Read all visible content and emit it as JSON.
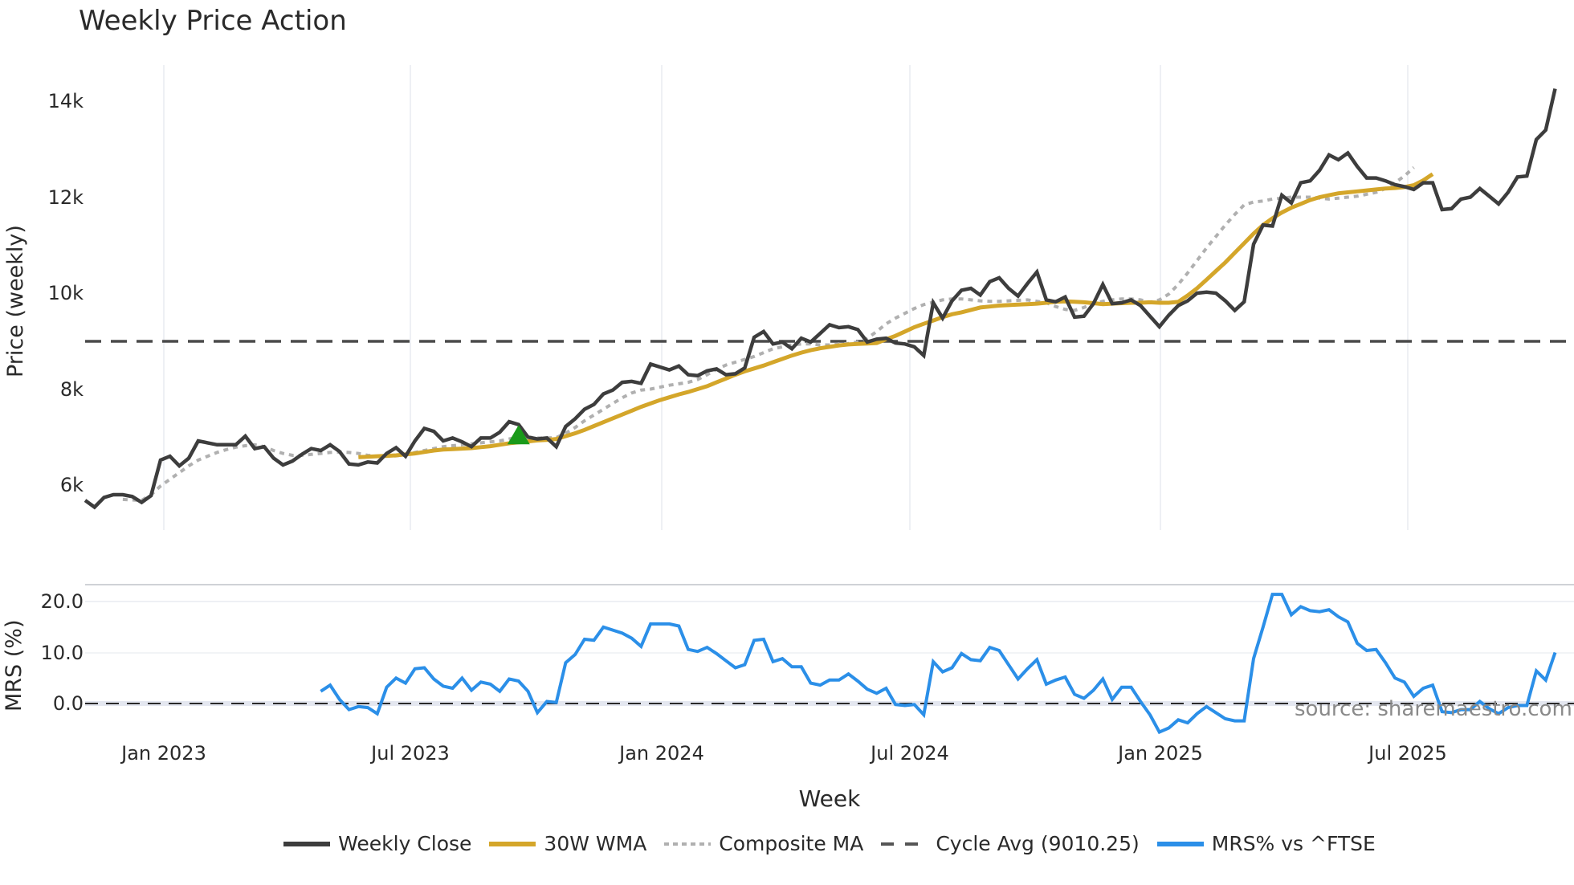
{
  "title": "Weekly Price Action",
  "source": "source: sharemaestro.com",
  "axes": {
    "main_ylabel": "Price (weekly)",
    "mrs_ylabel": "MRS (%)",
    "xlabel": "Week",
    "main_yticks": [
      "14k",
      "12k",
      "10k",
      "8k",
      "6k"
    ],
    "mrs_yticks": [
      "20.0",
      "10.0",
      "0.0"
    ],
    "xticks": [
      "Jan 2023",
      "Jul 2023",
      "Jan 2024",
      "Jul 2024",
      "Jan 2025",
      "Jul 2025"
    ]
  },
  "legend": [
    {
      "label": "Weekly Close",
      "color": "#3d3d3d",
      "style": "solid"
    },
    {
      "label": "30W WMA",
      "color": "#d4a62a",
      "style": "solid"
    },
    {
      "label": "Composite MA",
      "color": "#b0b0b0",
      "style": "dotted"
    },
    {
      "label": "Cycle Avg (9010.25)",
      "color": "#555555",
      "style": "dashed"
    },
    {
      "label": "MRS% vs ^FTSE",
      "color": "#2b8fe8",
      "style": "solid"
    }
  ],
  "colors": {
    "close": "#3d3d3d",
    "wma": "#d4a62a",
    "composite": "#b0b0b0",
    "cycle": "#4a4a4a",
    "mrs": "#2b8fe8",
    "marker": "#1a9a1a",
    "grid": "#e8ebf0"
  },
  "chart_data": [
    {
      "type": "line",
      "title": "Weekly Price Action",
      "xlabel": "Week",
      "ylabel": "Price (weekly)",
      "ylim": [
        5200,
        14800
      ],
      "x_tick_labels": [
        "Jan 2023",
        "Jul 2023",
        "Jan 2024",
        "Jul 2024",
        "Jan 2025",
        "Jul 2025"
      ],
      "series": [
        {
          "name": "Weekly Close",
          "start_week_index": 0,
          "values": [
            5680,
            5540,
            5740,
            5800,
            5800,
            5760,
            5640,
            5780,
            6520,
            6600,
            6400,
            6560,
            6920,
            6880,
            6840,
            6840,
            6840,
            7020,
            6760,
            6800,
            6560,
            6420,
            6500,
            6640,
            6760,
            6720,
            6840,
            6700,
            6440,
            6420,
            6480,
            6460,
            6660,
            6780,
            6600,
            6920,
            7180,
            7120,
            6920,
            6980,
            6900,
            6800,
            6980,
            6980,
            7100,
            7320,
            7260,
            7000,
            6960,
            6980,
            6800,
            7220,
            7380,
            7580,
            7680,
            7900,
            7980,
            8140,
            8160,
            8120,
            8520,
            8460,
            8400,
            8480,
            8300,
            8280,
            8380,
            8420,
            8300,
            8320,
            8440,
            9080,
            9200,
            8940,
            8980,
            8840,
            9060,
            8980,
            9160,
            9340,
            9280,
            9300,
            9240,
            8980,
            9040,
            9060,
            8960,
            8940,
            8880,
            8700,
            9800,
            9480,
            9840,
            10060,
            10100,
            9960,
            10240,
            10320,
            10100,
            9940,
            10200,
            10440,
            9860,
            9820,
            9920,
            9500,
            9520,
            9780,
            10180,
            9780,
            9800,
            9860,
            9740,
            9520,
            9300,
            9540,
            9740,
            9840,
            10000,
            10020,
            10000,
            9840,
            9640,
            9820,
            11020,
            11420,
            11400,
            12040,
            11880,
            12300,
            12340,
            12560,
            12880,
            12780,
            12920,
            12640,
            12400,
            12400,
            12340,
            12260,
            12220,
            12160,
            12300,
            12300,
            11740,
            11760,
            11960,
            12000,
            12180,
            12020,
            11860,
            12100,
            12420,
            12440,
            13200,
            13400,
            14260
          ]
        },
        {
          "name": "30W WMA",
          "start_week_index": 29,
          "values": [
            6580,
            6590,
            6600,
            6610,
            6620,
            6640,
            6660,
            6690,
            6720,
            6740,
            6750,
            6760,
            6770,
            6790,
            6810,
            6840,
            6870,
            6890,
            6910,
            6930,
            6940,
            6960,
            7020,
            7080,
            7150,
            7230,
            7310,
            7390,
            7470,
            7550,
            7630,
            7700,
            7770,
            7830,
            7890,
            7940,
            8000,
            8060,
            8140,
            8220,
            8300,
            8370,
            8430,
            8490,
            8560,
            8630,
            8700,
            8760,
            8810,
            8850,
            8880,
            8910,
            8930,
            8940,
            8950,
            8960,
            9040,
            9110,
            9200,
            9290,
            9360,
            9430,
            9500,
            9560,
            9600,
            9650,
            9700,
            9720,
            9740,
            9750,
            9760,
            9770,
            9780,
            9800,
            9820,
            9830,
            9820,
            9810,
            9790,
            9770,
            9780,
            9790,
            9800,
            9800,
            9810,
            9800,
            9800,
            9820,
            9950,
            10100,
            10280,
            10460,
            10640,
            10840,
            11040,
            11240,
            11420,
            11560,
            11680,
            11780,
            11860,
            11940,
            12000,
            12040,
            12080,
            12100,
            12120,
            12140,
            12160,
            12180,
            12190,
            12210,
            12250,
            12350,
            12480
          ]
        },
        {
          "name": "Composite MA",
          "start_week_index": 4,
          "values": [
            5700,
            5690,
            5680,
            5800,
            5980,
            6120,
            6260,
            6400,
            6520,
            6600,
            6680,
            6740,
            6790,
            6820,
            6840,
            6800,
            6720,
            6660,
            6620,
            6620,
            6640,
            6660,
            6680,
            6690,
            6680,
            6660,
            6620,
            6600,
            6600,
            6610,
            6640,
            6680,
            6720,
            6760,
            6800,
            6820,
            6840,
            6860,
            6880,
            6900,
            6920,
            6960,
            7000,
            7000,
            6980,
            6980,
            6990,
            7080,
            7200,
            7340,
            7460,
            7580,
            7700,
            7820,
            7920,
            7980,
            8000,
            8040,
            8080,
            8110,
            8140,
            8200,
            8300,
            8410,
            8500,
            8560,
            8620,
            8680,
            8760,
            8840,
            8880,
            8920,
            8940,
            8940,
            8920,
            8920,
            8940,
            8950,
            8980,
            9060,
            9200,
            9360,
            9480,
            9580,
            9680,
            9760,
            9810,
            9860,
            9880,
            9880,
            9860,
            9840,
            9830,
            9830,
            9840,
            9850,
            9860,
            9830,
            9800,
            9720,
            9660,
            9640,
            9700,
            9780,
            9830,
            9860,
            9880,
            9880,
            9860,
            9810,
            9860,
            9980,
            10180,
            10420,
            10680,
            10940,
            11180,
            11420,
            11640,
            11840,
            11900,
            11920,
            11960,
            11980,
            12000,
            12000,
            12000,
            11980,
            11960,
            11980,
            12000,
            12020,
            12060,
            12100,
            12180,
            12300,
            12440,
            12620
          ]
        },
        {
          "name": "Cycle Avg (9010.25)",
          "style": "dashed",
          "constant": 9010.25
        }
      ],
      "markers": [
        {
          "type": "triangle-up",
          "color": "#1a9a1a",
          "week_index": 46,
          "value": 7050
        }
      ]
    },
    {
      "type": "line",
      "ylabel": "MRS (%)",
      "ylim": [
        -8,
        24
      ],
      "yticks": [
        0,
        10,
        20
      ],
      "series": [
        {
          "name": "MRS% vs ^FTSE",
          "start_week_index": 25,
          "values": [
            2.4,
            3.6,
            0.8,
            -1.2,
            -0.6,
            -0.8,
            -2.0,
            3.2,
            5.0,
            4.0,
            6.8,
            7.0,
            4.8,
            3.4,
            3.0,
            5.0,
            2.6,
            4.2,
            3.8,
            2.4,
            4.8,
            4.4,
            2.4,
            -1.8,
            0.4,
            0.2,
            8.0,
            9.6,
            12.6,
            12.4,
            15.0,
            14.4,
            13.8,
            12.8,
            11.2,
            15.6,
            15.6,
            15.6,
            15.2,
            10.6,
            10.2,
            11.0,
            9.8,
            8.4,
            7.0,
            7.6,
            12.4,
            12.6,
            8.2,
            8.8,
            7.2,
            7.2,
            4.0,
            3.6,
            4.6,
            4.6,
            5.8,
            4.4,
            2.8,
            2.0,
            3.0,
            -0.2,
            -0.4,
            -0.2,
            -2.2,
            8.2,
            6.2,
            7.0,
            9.8,
            8.6,
            8.4,
            11.0,
            10.4,
            7.6,
            4.8,
            6.8,
            8.6,
            3.8,
            4.6,
            5.2,
            1.8,
            1.0,
            2.6,
            4.8,
            0.8,
            3.2,
            3.2,
            0.4,
            -2.2,
            -5.6,
            -4.8,
            -3.2,
            -3.8,
            -2.0,
            -0.6,
            -1.8,
            -3.0,
            -3.4,
            -3.4,
            8.8,
            15.0,
            21.4,
            21.4,
            17.4,
            19.0,
            18.2,
            18.0,
            18.4,
            17.0,
            16.0,
            11.8,
            10.4,
            10.6,
            8.0,
            5.0,
            4.2,
            1.4,
            3.0,
            3.6,
            -1.6,
            -1.8,
            -1.2,
            -1.2,
            0.4,
            -1.0,
            -2.0,
            -0.8,
            -0.4,
            -0.4,
            6.4,
            4.6,
            10.0
          ]
        },
        {
          "name": "zero line",
          "style": "dashed",
          "constant": 0
        }
      ]
    }
  ]
}
